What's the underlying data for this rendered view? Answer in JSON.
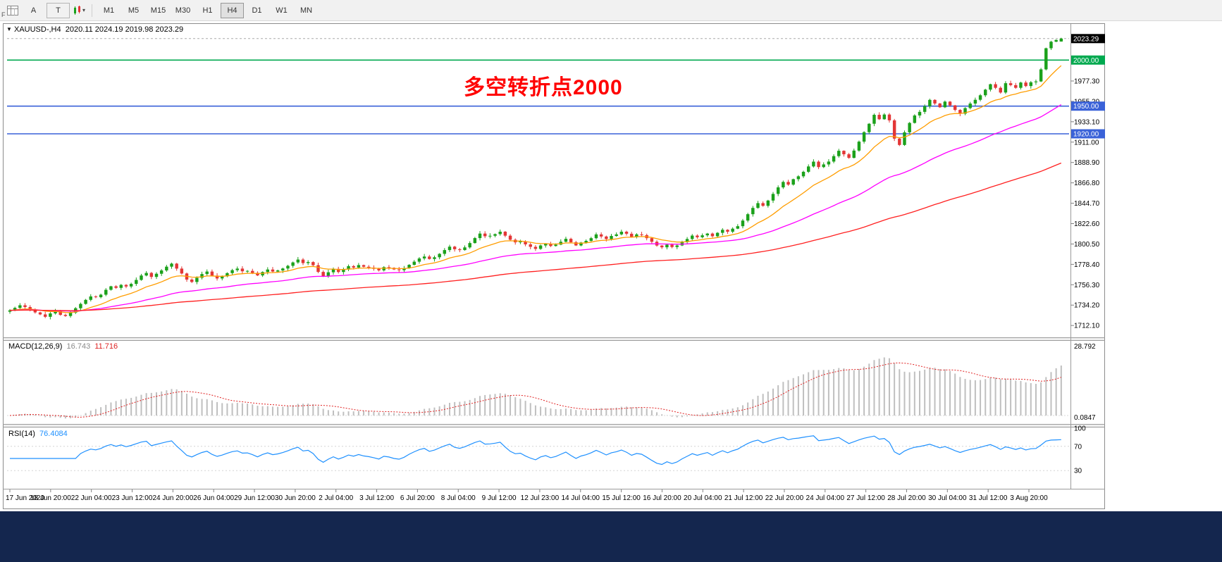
{
  "toolbar": {
    "buttons": {
      "annotation_tool": "A",
      "text_tool": "T"
    },
    "timeframes": [
      "M1",
      "M5",
      "M15",
      "M30",
      "H1",
      "H4",
      "D1",
      "W1",
      "MN"
    ],
    "active_timeframe": "H4",
    "fast_nav": "F"
  },
  "header": {
    "symbol_period": "XAUUSD-,H4",
    "ohlc": "2020.11 2024.19 2019.98 2023.29"
  },
  "chart_data": {
    "type": "candlestick",
    "symbol": "XAUUSD-",
    "timeframe": "H4",
    "current_bar": {
      "open": 2020.11,
      "high": 2024.19,
      "low": 2019.98,
      "close": 2023.29
    },
    "current_price_label": "2023.29",
    "current_price_badge_bg": "#000000",
    "first_open": 1727.0,
    "closes": [
      1728.5,
      1731.2,
      1734.0,
      1732.1,
      1729.4,
      1726.3,
      1724.1,
      1721.5,
      1725.2,
      1727.8,
      1723.6,
      1722.4,
      1726.0,
      1730.8,
      1735.5,
      1739.9,
      1743.6,
      1742.8,
      1745.5,
      1750.8,
      1754.6,
      1752.9,
      1756.1,
      1754.4,
      1757.2,
      1761.5,
      1766.3,
      1769.1,
      1764.8,
      1768.2,
      1771.8,
      1775.9,
      1779.2,
      1773.8,
      1768.5,
      1761.9,
      1759.3,
      1763.8,
      1767.9,
      1770.6,
      1766.2,
      1763.1,
      1765.4,
      1768.9,
      1772.1,
      1773.8,
      1770.9,
      1771.3,
      1769.2,
      1766.4,
      1770.1,
      1772.8,
      1770.6,
      1771.8,
      1773.9,
      1776.8,
      1780.5,
      1783.6,
      1779.8,
      1780.9,
      1777.5,
      1770.2,
      1765.4,
      1769.8,
      1773.5,
      1770.1,
      1772.8,
      1776.5,
      1774.9,
      1777.6,
      1775.8,
      1774.9,
      1773.6,
      1771.9,
      1775.4,
      1774.6,
      1772.9,
      1772.1,
      1774.2,
      1777.9,
      1781.3,
      1784.8,
      1786.9,
      1784.2,
      1786.1,
      1789.8,
      1793.9,
      1797.6,
      1794.8,
      1793.9,
      1796.8,
      1801.5,
      1806.9,
      1811.8,
      1808.9,
      1809.4,
      1811.2,
      1813.8,
      1809.5,
      1805.1,
      1802.3,
      1803.2,
      1800.1,
      1797.4,
      1795.2,
      1798.9,
      1800.8,
      1798.3,
      1799.8,
      1802.9,
      1806.1,
      1802.4,
      1798.9,
      1802.1,
      1803.9,
      1806.8,
      1810.9,
      1808.6,
      1805.9,
      1809.2,
      1810.9,
      1813.8,
      1811.6,
      1808.2,
      1810.9,
      1810.1,
      1806.8,
      1802.9,
      1798.8,
      1796.9,
      1799.8,
      1797.2,
      1798.9,
      1802.6,
      1805.9,
      1809.6,
      1807.8,
      1809.9,
      1811.8,
      1808.9,
      1812.6,
      1815.9,
      1813.8,
      1817.1,
      1819.8,
      1825.9,
      1832.8,
      1839.6,
      1844.8,
      1841.9,
      1847.6,
      1854.8,
      1861.9,
      1867.8,
      1864.9,
      1870.8,
      1873.9,
      1878.8,
      1884.6,
      1889.8,
      1883.9,
      1886.8,
      1889.9,
      1895.8,
      1901.6,
      1897.8,
      1893.9,
      1901.8,
      1911.5,
      1921.8,
      1930.9,
      1940.6,
      1935.8,
      1940.9,
      1934.6,
      1914.8,
      1907.9,
      1921.6,
      1931.8,
      1939.9,
      1943.8,
      1949.9,
      1956.8,
      1952.9,
      1948.8,
      1954.9,
      1950.8,
      1945.9,
      1941.8,
      1947.9,
      1952.8,
      1956.9,
      1961.8,
      1967.9,
      1973.8,
      1969.9,
      1964.8,
      1974.9,
      1972.8,
      1969.9,
      1975.6,
      1971.8,
      1975.9,
      1976.8,
      1989.9,
      2012.8,
      2019.9,
      2021.8,
      2023.29
    ],
    "y_axis": {
      "min": 1700,
      "max": 2030,
      "tick_labels": [
        "1977.30",
        "1955.20",
        "1933.10",
        "1911.00",
        "1888.90",
        "1866.80",
        "1844.70",
        "1822.60",
        "1800.50",
        "1778.40",
        "1756.30",
        "1734.20",
        "1712.10"
      ]
    },
    "x_axis": {
      "labels": [
        "17 Jun 2020",
        "18 Jun 20:00",
        "22 Jun 04:00",
        "23 Jun 12:00",
        "24 Jun 20:00",
        "26 Jun 04:00",
        "29 Jun 12:00",
        "30 Jun 20:00",
        "2 Jul 04:00",
        "3 Jul 12:00",
        "6 Jul 20:00",
        "8 Jul 04:00",
        "9 Jul 12:00",
        "12 Jul 23:00",
        "14 Jul 04:00",
        "15 Jul 12:00",
        "16 Jul 20:00",
        "20 Jul 04:00",
        "21 Jul 12:00",
        "22 Jul 20:00",
        "24 Jul 04:00",
        "27 Jul 12:00",
        "28 Jul 20:00",
        "30 Jul 04:00",
        "31 Jul 12:00",
        "3 Aug 20:00"
      ]
    },
    "h_lines": [
      {
        "price": 2000.0,
        "label": "2000.00",
        "color": "#00a94f"
      },
      {
        "price": 1950.0,
        "label": "1950.00",
        "color": "#3a62d8"
      },
      {
        "price": 1920.0,
        "label": "1920.00",
        "color": "#3a62d8"
      }
    ],
    "moving_averages": [
      {
        "name": "fast-ma",
        "period": 13,
        "color": "#ff9d00"
      },
      {
        "name": "mid-ma",
        "period": 45,
        "color": "#ff00ff"
      },
      {
        "name": "slow-ma",
        "period": 120,
        "color": "#ff2020"
      }
    ],
    "candle_colors": {
      "up": "#1ba11b",
      "down": "#e33636"
    },
    "indicators": {
      "macd": {
        "label": "MACD(12,26,9)",
        "value_main": "16.743",
        "value_signal": "11.716",
        "axis_max": "28.792",
        "axis_min": "0.0847",
        "histogram_color": "#bfbfbf",
        "signal_color": "#e02020"
      },
      "rsi": {
        "label": "RSI(14)",
        "value": "76.4084",
        "axis_ticks": [
          100,
          70,
          30
        ],
        "color": "#1e90ff"
      }
    },
    "annotation": {
      "text": "多空转折点2000",
      "color": "#ff0000"
    }
  }
}
